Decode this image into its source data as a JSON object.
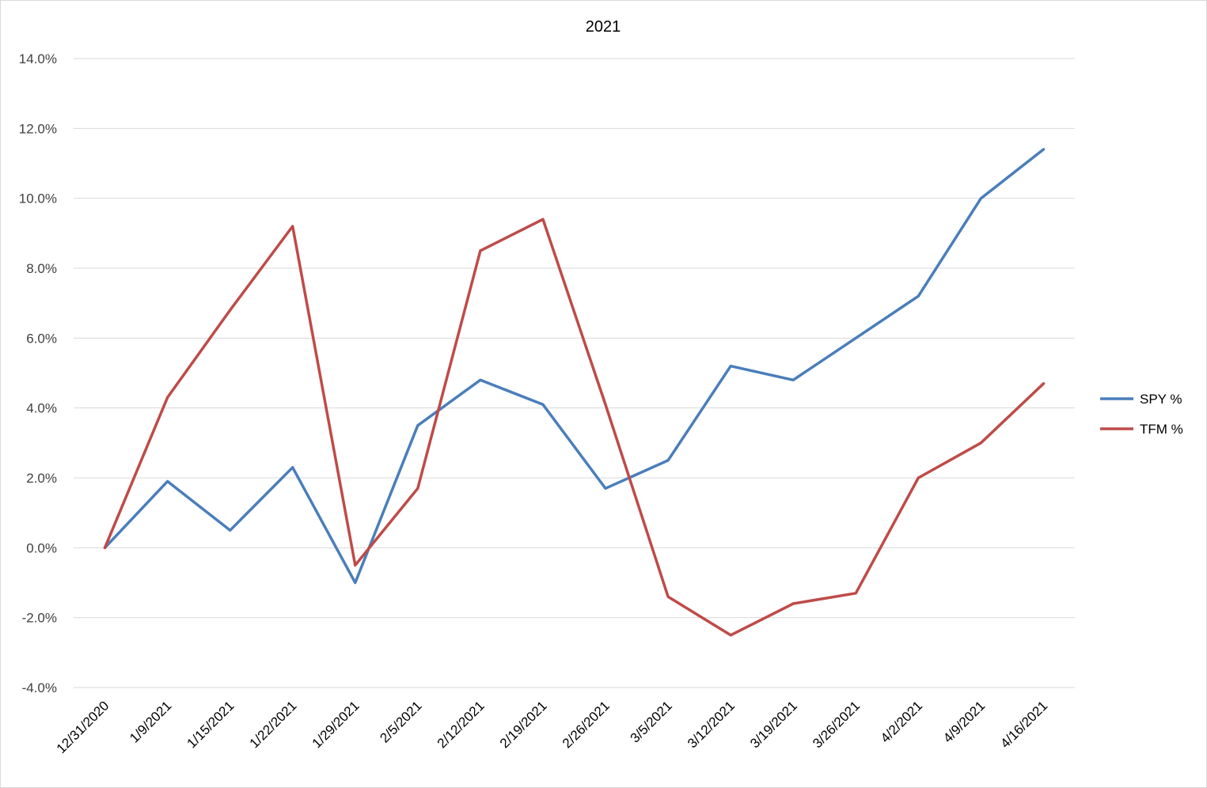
{
  "chart_data": {
    "type": "line",
    "title": "2021",
    "xlabel": "",
    "ylabel": "",
    "categories": [
      "12/31/2020",
      "1/9/2021",
      "1/15/2021",
      "1/22/2021",
      "1/29/2021",
      "2/5/2021",
      "2/12/2021",
      "2/19/2021",
      "2/26/2021",
      "3/5/2021",
      "3/12/2021",
      "3/19/2021",
      "3/26/2021",
      "4/2/2021",
      "4/9/2021",
      "4/16/2021"
    ],
    "yticks": [
      "-4.0%",
      "-2.0%",
      "0.0%",
      "2.0%",
      "4.0%",
      "6.0%",
      "8.0%",
      "10.0%",
      "12.0%",
      "14.0%"
    ],
    "ylim": [
      -4,
      14
    ],
    "grid": true,
    "legend_position": "right",
    "series": [
      {
        "name": "SPY %",
        "color": "#4a7ebb",
        "values": [
          0.0,
          1.9,
          0.5,
          2.3,
          -1.0,
          3.5,
          4.8,
          4.1,
          1.7,
          2.5,
          5.2,
          4.8,
          6.0,
          7.2,
          10.0,
          11.4
        ]
      },
      {
        "name": "TFM %",
        "color": "#be4b48",
        "values": [
          0.0,
          4.3,
          6.8,
          9.2,
          -0.5,
          1.7,
          8.5,
          9.4,
          4.1,
          -1.4,
          -2.5,
          -1.6,
          -1.3,
          2.0,
          3.0,
          4.7
        ]
      }
    ]
  }
}
